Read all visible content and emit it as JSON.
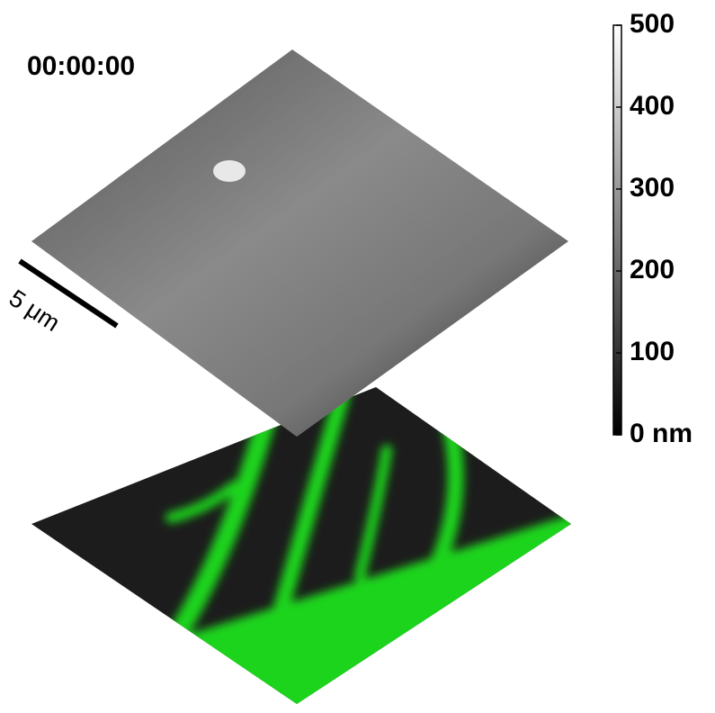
{
  "timestamp": "00:00:00",
  "scale_bar": {
    "label": "5 μm"
  },
  "colorbar": {
    "range": [
      0,
      500
    ],
    "ticks": [
      {
        "value": 0,
        "label": "0 nm"
      },
      100,
      200,
      300,
      400,
      500
    ]
  }
}
